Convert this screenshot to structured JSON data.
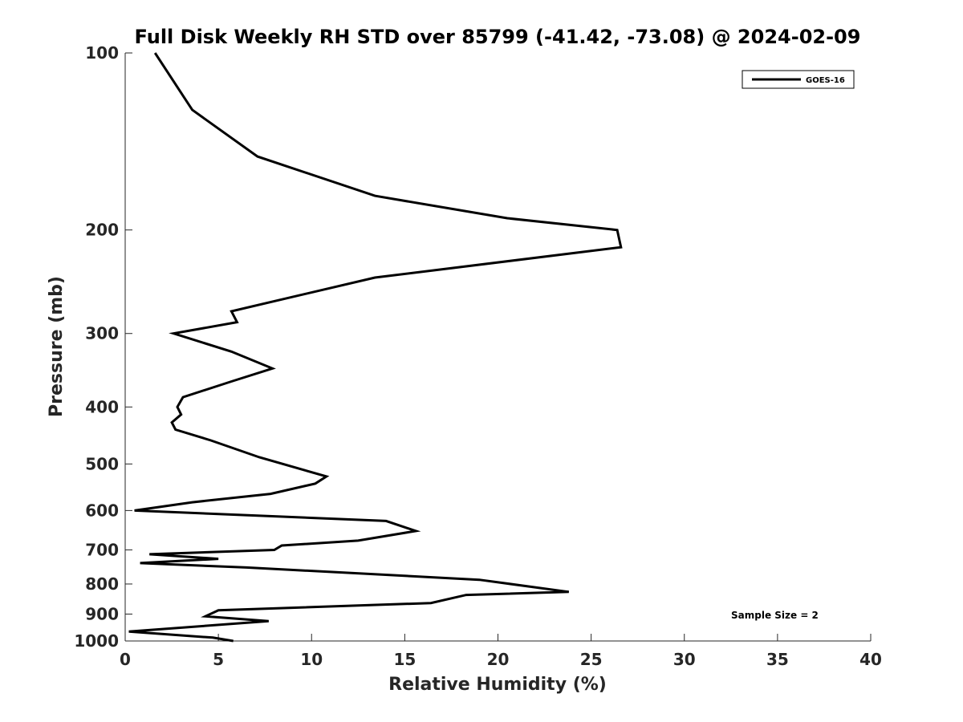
{
  "chart_data": {
    "type": "line",
    "title": "Full Disk Weekly RH STD over 85799 (-41.42, -73.08) @ 2024-02-09",
    "xlabel": "Relative Humidity (%)",
    "ylabel": "Pressure (mb)",
    "xlim": [
      0,
      40
    ],
    "ylim": [
      100,
      1000
    ],
    "yscale": "log",
    "y_reversed": true,
    "xticks": [
      0,
      5,
      10,
      15,
      20,
      25,
      30,
      35,
      40
    ],
    "xtick_labels": [
      "0",
      "5",
      "10",
      "15",
      "20",
      "25",
      "30",
      "35",
      "40"
    ],
    "yticks": [
      100,
      200,
      300,
      400,
      500,
      600,
      700,
      800,
      900,
      1000
    ],
    "ytick_labels": [
      "100",
      "200",
      "300",
      "400",
      "500",
      "600",
      "700",
      "800",
      "900",
      "1000"
    ],
    "grid": false,
    "legend_position": "top-right",
    "annotation": "Sample Size = 2",
    "series": [
      {
        "name": "GOES-16",
        "color": "#000000",
        "x": [
          1.6,
          3.6,
          7.1,
          13.4,
          20.5,
          26.4,
          26.6,
          13.4,
          5.7,
          6.0,
          2.6,
          5.7,
          7.9,
          5.7,
          3.1,
          2.8,
          3.0,
          2.5,
          2.7,
          4.6,
          7.2,
          10.8,
          10.2,
          7.8,
          3.6,
          0.5,
          14.0,
          15.6,
          12.5,
          8.4,
          8.0,
          1.3,
          5.0,
          0.8,
          6.5,
          19.0,
          23.8,
          18.3,
          16.4,
          5.0,
          4.3,
          7.7,
          0.2,
          4.7,
          5.8
        ],
        "y": [
          100,
          125,
          150,
          175,
          191,
          200,
          214,
          241,
          275,
          287,
          300,
          322,
          344,
          362,
          385,
          400,
          412,
          425,
          437,
          456,
          487,
          525,
          540,
          562,
          581,
          600,
          625,
          650,
          675,
          688,
          700,
          712,
          725,
          737,
          750,
          787,
          825,
          835,
          862,
          887,
          908,
          925,
          964,
          987,
          1000
        ]
      }
    ]
  }
}
